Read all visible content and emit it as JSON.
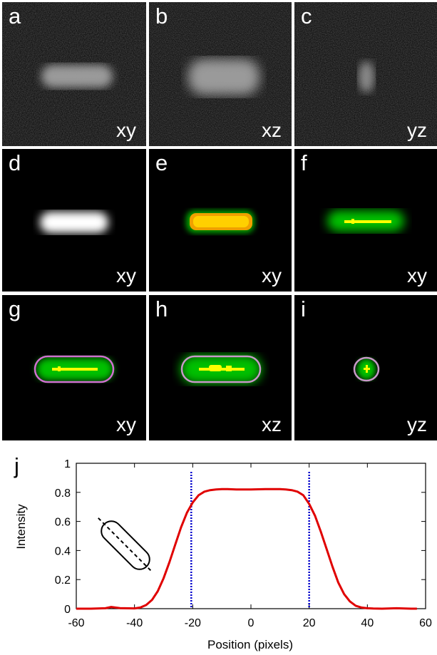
{
  "panels": [
    {
      "letter": "a",
      "view": "xy"
    },
    {
      "letter": "b",
      "view": "xz"
    },
    {
      "letter": "c",
      "view": "yz"
    },
    {
      "letter": "d",
      "view": "xy"
    },
    {
      "letter": "e",
      "view": "xy"
    },
    {
      "letter": "f",
      "view": "xy"
    },
    {
      "letter": "g",
      "view": "xy"
    },
    {
      "letter": "h",
      "view": "xz"
    },
    {
      "letter": "i",
      "view": "yz"
    }
  ],
  "colors": {
    "outline": "#d070d0",
    "outline_pale": "#c898c8",
    "green": "#00c800",
    "yellow": "#ffff00",
    "orange": "#f0a000",
    "curve": "#e00000",
    "boundary": "#0000cc"
  },
  "chart_data": {
    "letter": "j",
    "type": "line",
    "xlabel": "Position (pixels)",
    "ylabel": "Intensity",
    "xlim": [
      -60,
      60
    ],
    "ylim": [
      0,
      1
    ],
    "xticks": [
      -60,
      -40,
      -20,
      0,
      20,
      40,
      60
    ],
    "yticks": [
      0,
      0.2,
      0.4,
      0.6,
      0.8,
      1
    ],
    "series": [
      {
        "x": [
          -60,
          -55,
          -50,
          -48,
          -45,
          -40,
          -38,
          -36,
          -34,
          -32,
          -30,
          -28,
          -26,
          -24,
          -22,
          -20,
          -18,
          -16,
          -14,
          -12,
          -10,
          -8,
          -5,
          0,
          5,
          10,
          12,
          14,
          16,
          18,
          20,
          22,
          24,
          26,
          28,
          30,
          32,
          34,
          36,
          38,
          40,
          42,
          45,
          50,
          55,
          57
        ],
        "y": [
          0,
          0,
          0.003,
          0.012,
          0.004,
          0.002,
          0.008,
          0.025,
          0.06,
          0.12,
          0.21,
          0.32,
          0.44,
          0.56,
          0.66,
          0.73,
          0.78,
          0.805,
          0.815,
          0.82,
          0.822,
          0.822,
          0.82,
          0.82,
          0.822,
          0.822,
          0.82,
          0.815,
          0.805,
          0.78,
          0.72,
          0.64,
          0.53,
          0.41,
          0.29,
          0.18,
          0.1,
          0.05,
          0.02,
          0.008,
          0.003,
          0.001,
          0,
          0.003,
          0,
          0
        ]
      }
    ],
    "boundaries": [
      -20.5,
      20
    ]
  }
}
